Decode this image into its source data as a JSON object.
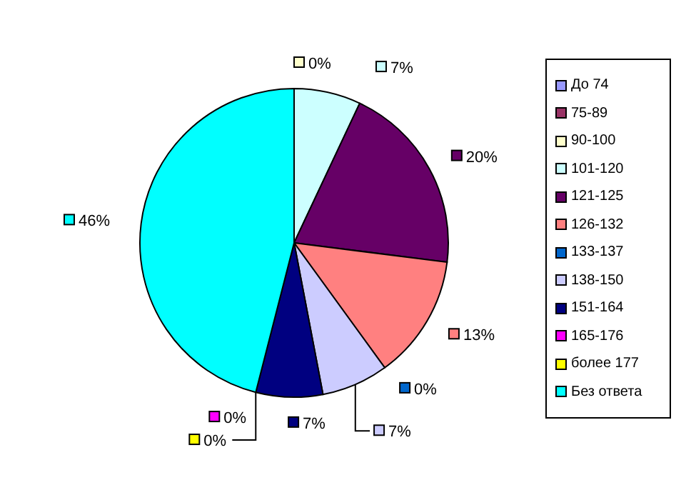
{
  "chart_data": {
    "type": "pie",
    "categories": [
      "До 74",
      "75-89",
      "90-100",
      "101-120",
      "121-125",
      "126-132",
      "133-137",
      "138-150",
      "151-164",
      "165-176",
      "более 177",
      "Без ответа"
    ],
    "values": [
      0,
      0,
      0,
      7,
      20,
      13,
      0,
      7,
      7,
      0,
      0,
      46
    ],
    "value_labels": [
      null,
      null,
      "0%",
      "7%",
      "20%",
      "13%",
      "0%",
      "7%",
      "7%",
      "0%",
      "0%",
      "46%"
    ],
    "colors": [
      "#9999ff",
      "#993366",
      "#ffffcc",
      "#ccffff",
      "#660066",
      "#ff8080",
      "#0066cc",
      "#ccccff",
      "#000080",
      "#ff00ff",
      "#ffff00",
      "#00ffff"
    ],
    "legend": "right"
  }
}
